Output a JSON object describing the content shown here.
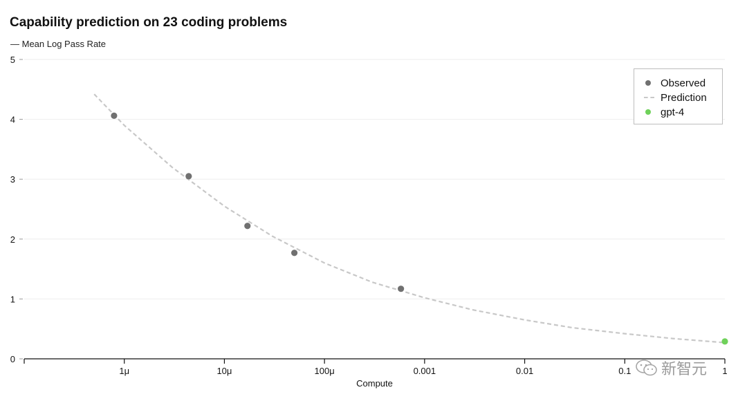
{
  "chart_data": {
    "type": "scatter",
    "title": "Capability prediction on 23 coding problems",
    "ylabel": "— Mean Log Pass Rate",
    "xlabel": "Compute",
    "x_scale": "log",
    "xlim": [
      1e-07,
      1
    ],
    "ylim": [
      0,
      5
    ],
    "x_ticks": [
      1e-06,
      1e-05,
      0.0001,
      0.001,
      0.01,
      0.1,
      1
    ],
    "x_tick_labels": [
      "1μ",
      "10μ",
      "100μ",
      "0.001",
      "0.01",
      "0.1",
      "1"
    ],
    "y_ticks": [
      0,
      1,
      2,
      3,
      4,
      5
    ],
    "y_tick_labels": [
      "0",
      "1",
      "2",
      "3",
      "4",
      "5"
    ],
    "grid": "horizontal",
    "legend_position": "top-right",
    "series": [
      {
        "name": "Observed",
        "color": "#707070",
        "points": [
          {
            "x": 7.9e-07,
            "y": 4.06
          },
          {
            "x": 4.4e-06,
            "y": 3.05
          },
          {
            "x": 1.7e-05,
            "y": 2.22
          },
          {
            "x": 5e-05,
            "y": 1.77
          },
          {
            "x": 0.00058,
            "y": 1.17
          }
        ]
      },
      {
        "name": "Prediction",
        "color": "#c8c8c8",
        "style": "dashed",
        "points": [
          {
            "x": 5e-07,
            "y": 4.42
          },
          {
            "x": 1e-06,
            "y": 3.9
          },
          {
            "x": 3e-06,
            "y": 3.2
          },
          {
            "x": 1e-05,
            "y": 2.55
          },
          {
            "x": 3e-05,
            "y": 2.05
          },
          {
            "x": 0.0001,
            "y": 1.6
          },
          {
            "x": 0.0003,
            "y": 1.28
          },
          {
            "x": 0.001,
            "y": 1.02
          },
          {
            "x": 0.003,
            "y": 0.82
          },
          {
            "x": 0.01,
            "y": 0.65
          },
          {
            "x": 0.03,
            "y": 0.52
          },
          {
            "x": 0.1,
            "y": 0.42
          },
          {
            "x": 0.3,
            "y": 0.34
          },
          {
            "x": 1,
            "y": 0.27
          }
        ]
      },
      {
        "name": "gpt-4",
        "color": "#6fd15a",
        "points": [
          {
            "x": 1,
            "y": 0.29
          }
        ]
      }
    ]
  },
  "legend": {
    "observed": "Observed",
    "prediction": "Prediction",
    "gpt4": "gpt-4"
  },
  "watermark": {
    "text": "新智元",
    "icon": "wechat-icon"
  }
}
